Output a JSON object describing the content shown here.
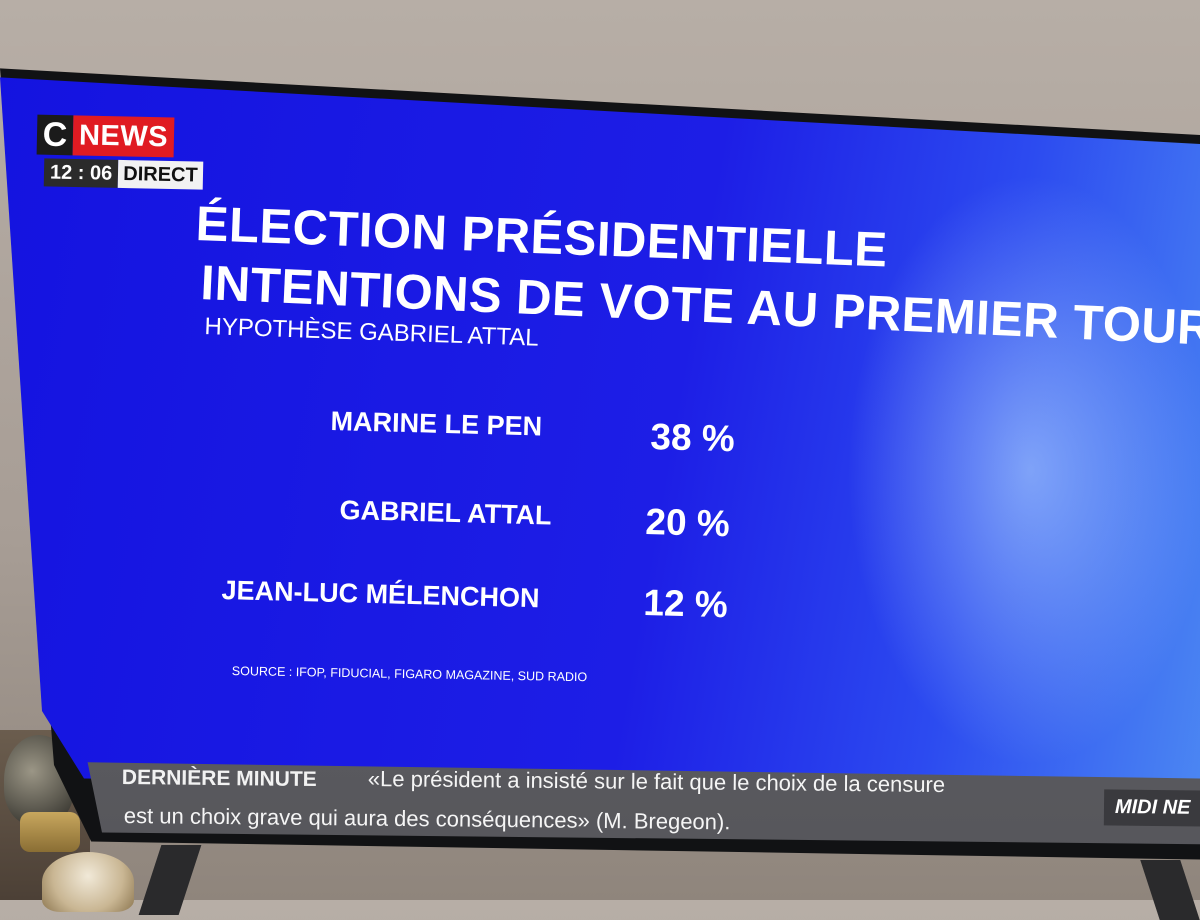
{
  "channel": {
    "logo_c": "C",
    "logo_news": "NEWS",
    "time": "12 : 06",
    "live_label": "DIRECT"
  },
  "headline": {
    "line1": "ÉLECTION PRÉSIDENTIELLE",
    "line2": "INTENTIONS DE VOTE AU PREMIER TOUR",
    "subtitle": "HYPOTHÈSE GABRIEL ATTAL"
  },
  "results": [
    {
      "name": "MARINE LE PEN",
      "value": "38 %"
    },
    {
      "name": "GABRIEL ATTAL",
      "value": "20 %"
    },
    {
      "name": "JEAN-LUC MÉLENCHON",
      "value": "12 %"
    }
  ],
  "source": "SOURCE : IFOP, FIDUCIAL, FIGARO MAGAZINE, SUD RADIO",
  "ticker": {
    "label": "DERNIÈRE MINUTE",
    "line1": "«Le président a insisté sur le fait que le choix de la censure",
    "line2": "est un choix grave qui aura des conséquences» (M. Bregeon).",
    "show": "MIDI NE"
  }
}
